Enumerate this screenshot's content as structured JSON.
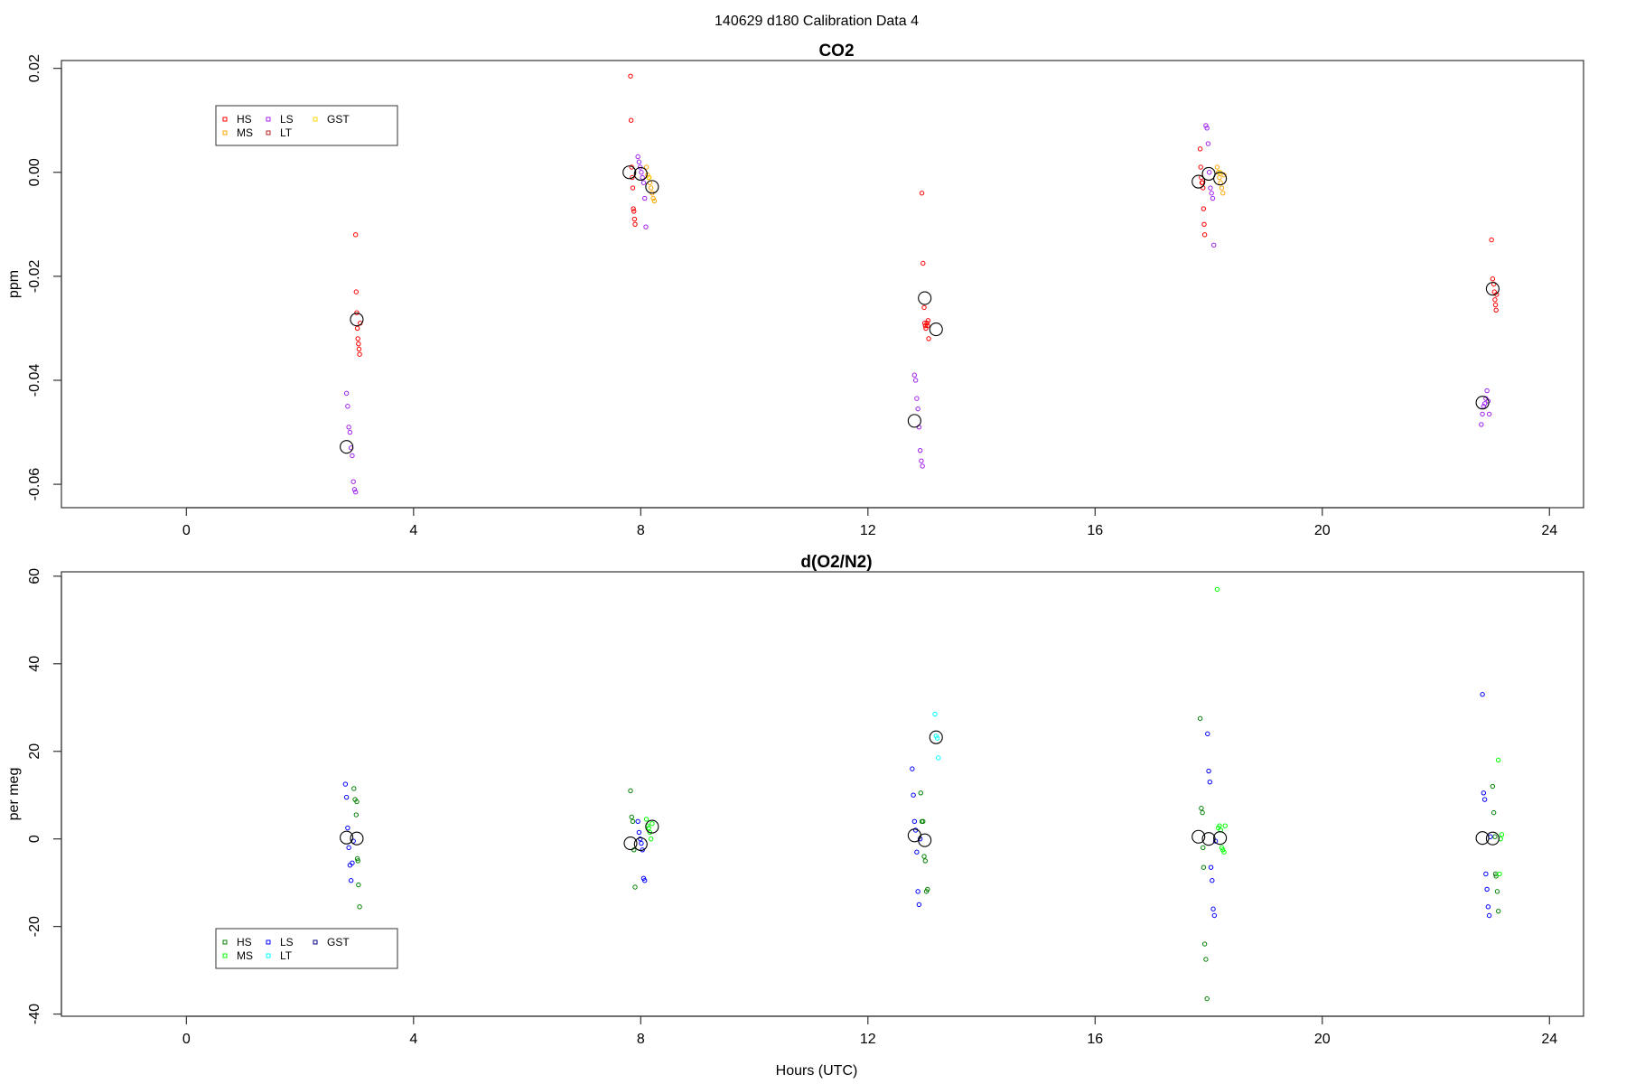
{
  "figure": {
    "title": "140629   d180   Calibration Data 4"
  },
  "chart_data": [
    {
      "type": "scatter",
      "title": "CO2",
      "xlabel": "",
      "ylabel": "ppm",
      "xlim": [
        -2.2,
        24.6
      ],
      "ylim": [
        -0.0645,
        0.0215
      ],
      "xticks": [
        0,
        4,
        8,
        12,
        16,
        20,
        24
      ],
      "yticks": [
        -0.06,
        -0.04,
        -0.02,
        0.0,
        0.02
      ],
      "ytick_labels": [
        "-0.06",
        "-0.04",
        "-0.02",
        "0.00",
        "0.02"
      ],
      "grid": false,
      "legend_position": "top-left",
      "legend": [
        {
          "name": "HS",
          "color": "#ff0000"
        },
        {
          "name": "MS",
          "color": "#ffa500"
        },
        {
          "name": "LS",
          "color": "#a020f0"
        },
        {
          "name": "LT",
          "color": "#b22222"
        },
        {
          "name": "GST",
          "color": "#ffd700"
        }
      ],
      "series": [
        {
          "name": "HS",
          "color": "#ff0000",
          "x": [
            2.98,
            2.99,
            3.0,
            3.01,
            3.02,
            3.03,
            3.04,
            3.05,
            3.06,
            7.82,
            7.83,
            7.84,
            7.85,
            7.86,
            7.87,
            7.88,
            7.89,
            7.9,
            12.95,
            12.97,
            12.99,
            13.0,
            13.01,
            13.02,
            13.04,
            13.05,
            13.06,
            13.07,
            17.85,
            17.86,
            17.87,
            17.88,
            17.89,
            17.9,
            17.91,
            17.92,
            17.93,
            22.98,
            23.0,
            23.02,
            23.03,
            23.04,
            23.05,
            23.06,
            23.07
          ],
          "y": [
            -0.012,
            -0.023,
            -0.027,
            -0.03,
            -0.032,
            -0.033,
            -0.034,
            -0.035,
            -0.029,
            0.0185,
            0.01,
            0.001,
            -0.001,
            -0.003,
            -0.007,
            -0.0075,
            -0.009,
            -0.01,
            -0.004,
            -0.0175,
            -0.026,
            -0.029,
            -0.0295,
            -0.03,
            -0.029,
            -0.0295,
            -0.0285,
            -0.032,
            0.0045,
            0.001,
            -0.001,
            -0.002,
            -0.002,
            -0.003,
            -0.007,
            -0.01,
            -0.012,
            -0.013,
            -0.0205,
            -0.0215,
            -0.023,
            -0.0245,
            -0.0255,
            -0.0265,
            -0.0235
          ]
        },
        {
          "name": "MS",
          "color": "#ffa500",
          "x": [
            8.1,
            8.12,
            8.14,
            8.16,
            8.18,
            8.2,
            8.22,
            8.24,
            18.15,
            18.17,
            18.19,
            18.21,
            18.23,
            18.25,
            18.27
          ],
          "y": [
            0.001,
            -0.0005,
            -0.001,
            -0.002,
            -0.003,
            -0.004,
            -0.005,
            -0.0055,
            0.001,
            0.0,
            -0.001,
            -0.002,
            -0.003,
            -0.004,
            -0.0005
          ]
        },
        {
          "name": "LS",
          "color": "#a020f0",
          "x": [
            2.82,
            2.84,
            2.86,
            2.88,
            2.9,
            2.92,
            2.94,
            2.96,
            2.98,
            7.95,
            7.97,
            7.99,
            8.01,
            8.03,
            8.05,
            8.07,
            8.09,
            12.82,
            12.84,
            12.86,
            12.88,
            12.9,
            12.92,
            12.94,
            12.96,
            17.95,
            17.97,
            17.99,
            18.01,
            18.03,
            18.05,
            18.07,
            18.09,
            22.8,
            22.82,
            22.84,
            22.86,
            22.88,
            22.9,
            22.92,
            22.94
          ],
          "y": [
            -0.0425,
            -0.045,
            -0.049,
            -0.05,
            -0.053,
            -0.0545,
            -0.0595,
            -0.061,
            -0.0615,
            0.003,
            0.002,
            0.001,
            0.0,
            -0.001,
            -0.002,
            -0.005,
            -0.0105,
            -0.039,
            -0.04,
            -0.0435,
            -0.0455,
            -0.049,
            -0.0535,
            -0.0555,
            -0.0565,
            0.009,
            0.0085,
            0.0055,
            0.0,
            -0.003,
            -0.004,
            -0.005,
            -0.014,
            -0.0485,
            -0.0465,
            -0.045,
            -0.0445,
            -0.0435,
            -0.042,
            -0.044,
            -0.0465
          ]
        },
        {
          "name": "LT",
          "color": "#b22222",
          "x": [],
          "y": []
        },
        {
          "name": "GST",
          "color": "#ffd700",
          "x": [
            8.15,
            18.2
          ],
          "y": [
            -0.001,
            0.0
          ]
        }
      ],
      "means": {
        "color": "#000000",
        "x": [
          2.82,
          3.0,
          7.8,
          8.0,
          8.2,
          12.82,
          13.0,
          13.2,
          17.82,
          18.0,
          18.2,
          22.82,
          23.0
        ],
        "y": [
          -0.0528,
          -0.0283,
          0.0,
          -0.0003,
          -0.0028,
          -0.0478,
          -0.0242,
          -0.0302,
          -0.0018,
          -0.0003,
          -0.0012,
          -0.0443,
          -0.0224
        ]
      }
    },
    {
      "type": "scatter",
      "title": "d(O2/N2)",
      "xlabel": "Hours (UTC)",
      "ylabel": "per meg",
      "xlim": [
        -2.2,
        24.6
      ],
      "ylim": [
        -40.5,
        61
      ],
      "xticks": [
        0,
        4,
        8,
        12,
        16,
        20,
        24
      ],
      "yticks": [
        -40,
        -20,
        0,
        20,
        40,
        60
      ],
      "ytick_labels": [
        "-40",
        "-20",
        "0",
        "20",
        "40",
        "60"
      ],
      "grid": false,
      "legend_position": "bottom-left",
      "legend": [
        {
          "name": "HS",
          "color": "#008000"
        },
        {
          "name": "MS",
          "color": "#00ff00"
        },
        {
          "name": "LS",
          "color": "#0000ff"
        },
        {
          "name": "LT",
          "color": "#00ffff"
        },
        {
          "name": "GST",
          "color": "#000080"
        }
      ],
      "series": [
        {
          "name": "HS",
          "color": "#008000",
          "x": [
            2.95,
            2.97,
            2.99,
            3.0,
            3.01,
            3.02,
            3.03,
            3.05,
            7.82,
            7.84,
            7.86,
            7.88,
            7.9,
            12.93,
            12.95,
            12.97,
            12.99,
            13.01,
            13.03,
            13.05,
            17.85,
            17.87,
            17.89,
            17.9,
            17.91,
            17.93,
            17.95,
            17.97,
            23.0,
            23.02,
            23.04,
            23.05,
            23.06,
            23.08,
            23.1
          ],
          "y": [
            11.5,
            9,
            5.5,
            8.5,
            -4.5,
            -5,
            -10.5,
            -15.5,
            11,
            5,
            4,
            -2.5,
            -11,
            10.5,
            4,
            4,
            -4,
            -5,
            -12,
            -11.5,
            27.5,
            7,
            6,
            -2,
            -6.5,
            -24,
            -27.5,
            -36.5,
            12,
            6,
            0.5,
            -8,
            -8.5,
            -12,
            -16.5
          ]
        },
        {
          "name": "MS",
          "color": "#00ff00",
          "x": [
            8.1,
            8.12,
            8.14,
            8.16,
            8.18,
            8.2,
            18.15,
            18.17,
            18.19,
            18.21,
            18.23,
            18.25,
            18.27,
            18.29,
            23.1,
            23.12,
            23.14,
            23.16
          ],
          "y": [
            4.5,
            3,
            2.5,
            1.5,
            0,
            3.5,
            57,
            2.5,
            3,
            2,
            -2,
            -2.5,
            -3,
            3,
            18,
            -8,
            0,
            1
          ]
        },
        {
          "name": "LS",
          "color": "#0000ff",
          "x": [
            2.8,
            2.82,
            2.84,
            2.86,
            2.88,
            2.9,
            2.92,
            2.94,
            7.95,
            7.97,
            7.99,
            8.01,
            8.03,
            8.05,
            8.07,
            12.78,
            12.8,
            12.82,
            12.84,
            12.86,
            12.88,
            12.9,
            12.92,
            17.98,
            18.0,
            18.02,
            18.04,
            18.06,
            18.08,
            18.1,
            18.12,
            22.82,
            22.84,
            22.86,
            22.88,
            22.9,
            22.92,
            22.94,
            22.96
          ],
          "y": [
            12.5,
            9.5,
            2.5,
            -2,
            -6,
            -9.5,
            -5.5,
            -0.5,
            4,
            1.5,
            0,
            -1,
            -2.5,
            -9,
            -9.5,
            16,
            10,
            4,
            2,
            -3,
            -12,
            -15,
            0,
            24,
            15.5,
            13,
            -6.5,
            -9.5,
            -16,
            -17.5,
            -0.5,
            33,
            10.5,
            9,
            -8,
            -11.5,
            -15.5,
            -17.5,
            0.5
          ]
        },
        {
          "name": "LT",
          "color": "#00ffff",
          "x": [
            13.18,
            13.2,
            13.22,
            13.24
          ],
          "y": [
            28.5,
            23.5,
            23,
            18.5
          ]
        },
        {
          "name": "GST",
          "color": "#000080",
          "x": [],
          "y": []
        }
      ],
      "means": {
        "color": "#000000",
        "x": [
          2.82,
          3.0,
          7.82,
          8.0,
          8.2,
          12.82,
          13.0,
          13.2,
          17.82,
          18.0,
          18.2,
          22.82,
          23.0
        ],
        "y": [
          0.3,
          0.1,
          -1,
          -1.2,
          2.8,
          0.8,
          -0.3,
          23.2,
          0.5,
          0,
          0.2,
          0.2,
          0.1
        ]
      }
    }
  ]
}
